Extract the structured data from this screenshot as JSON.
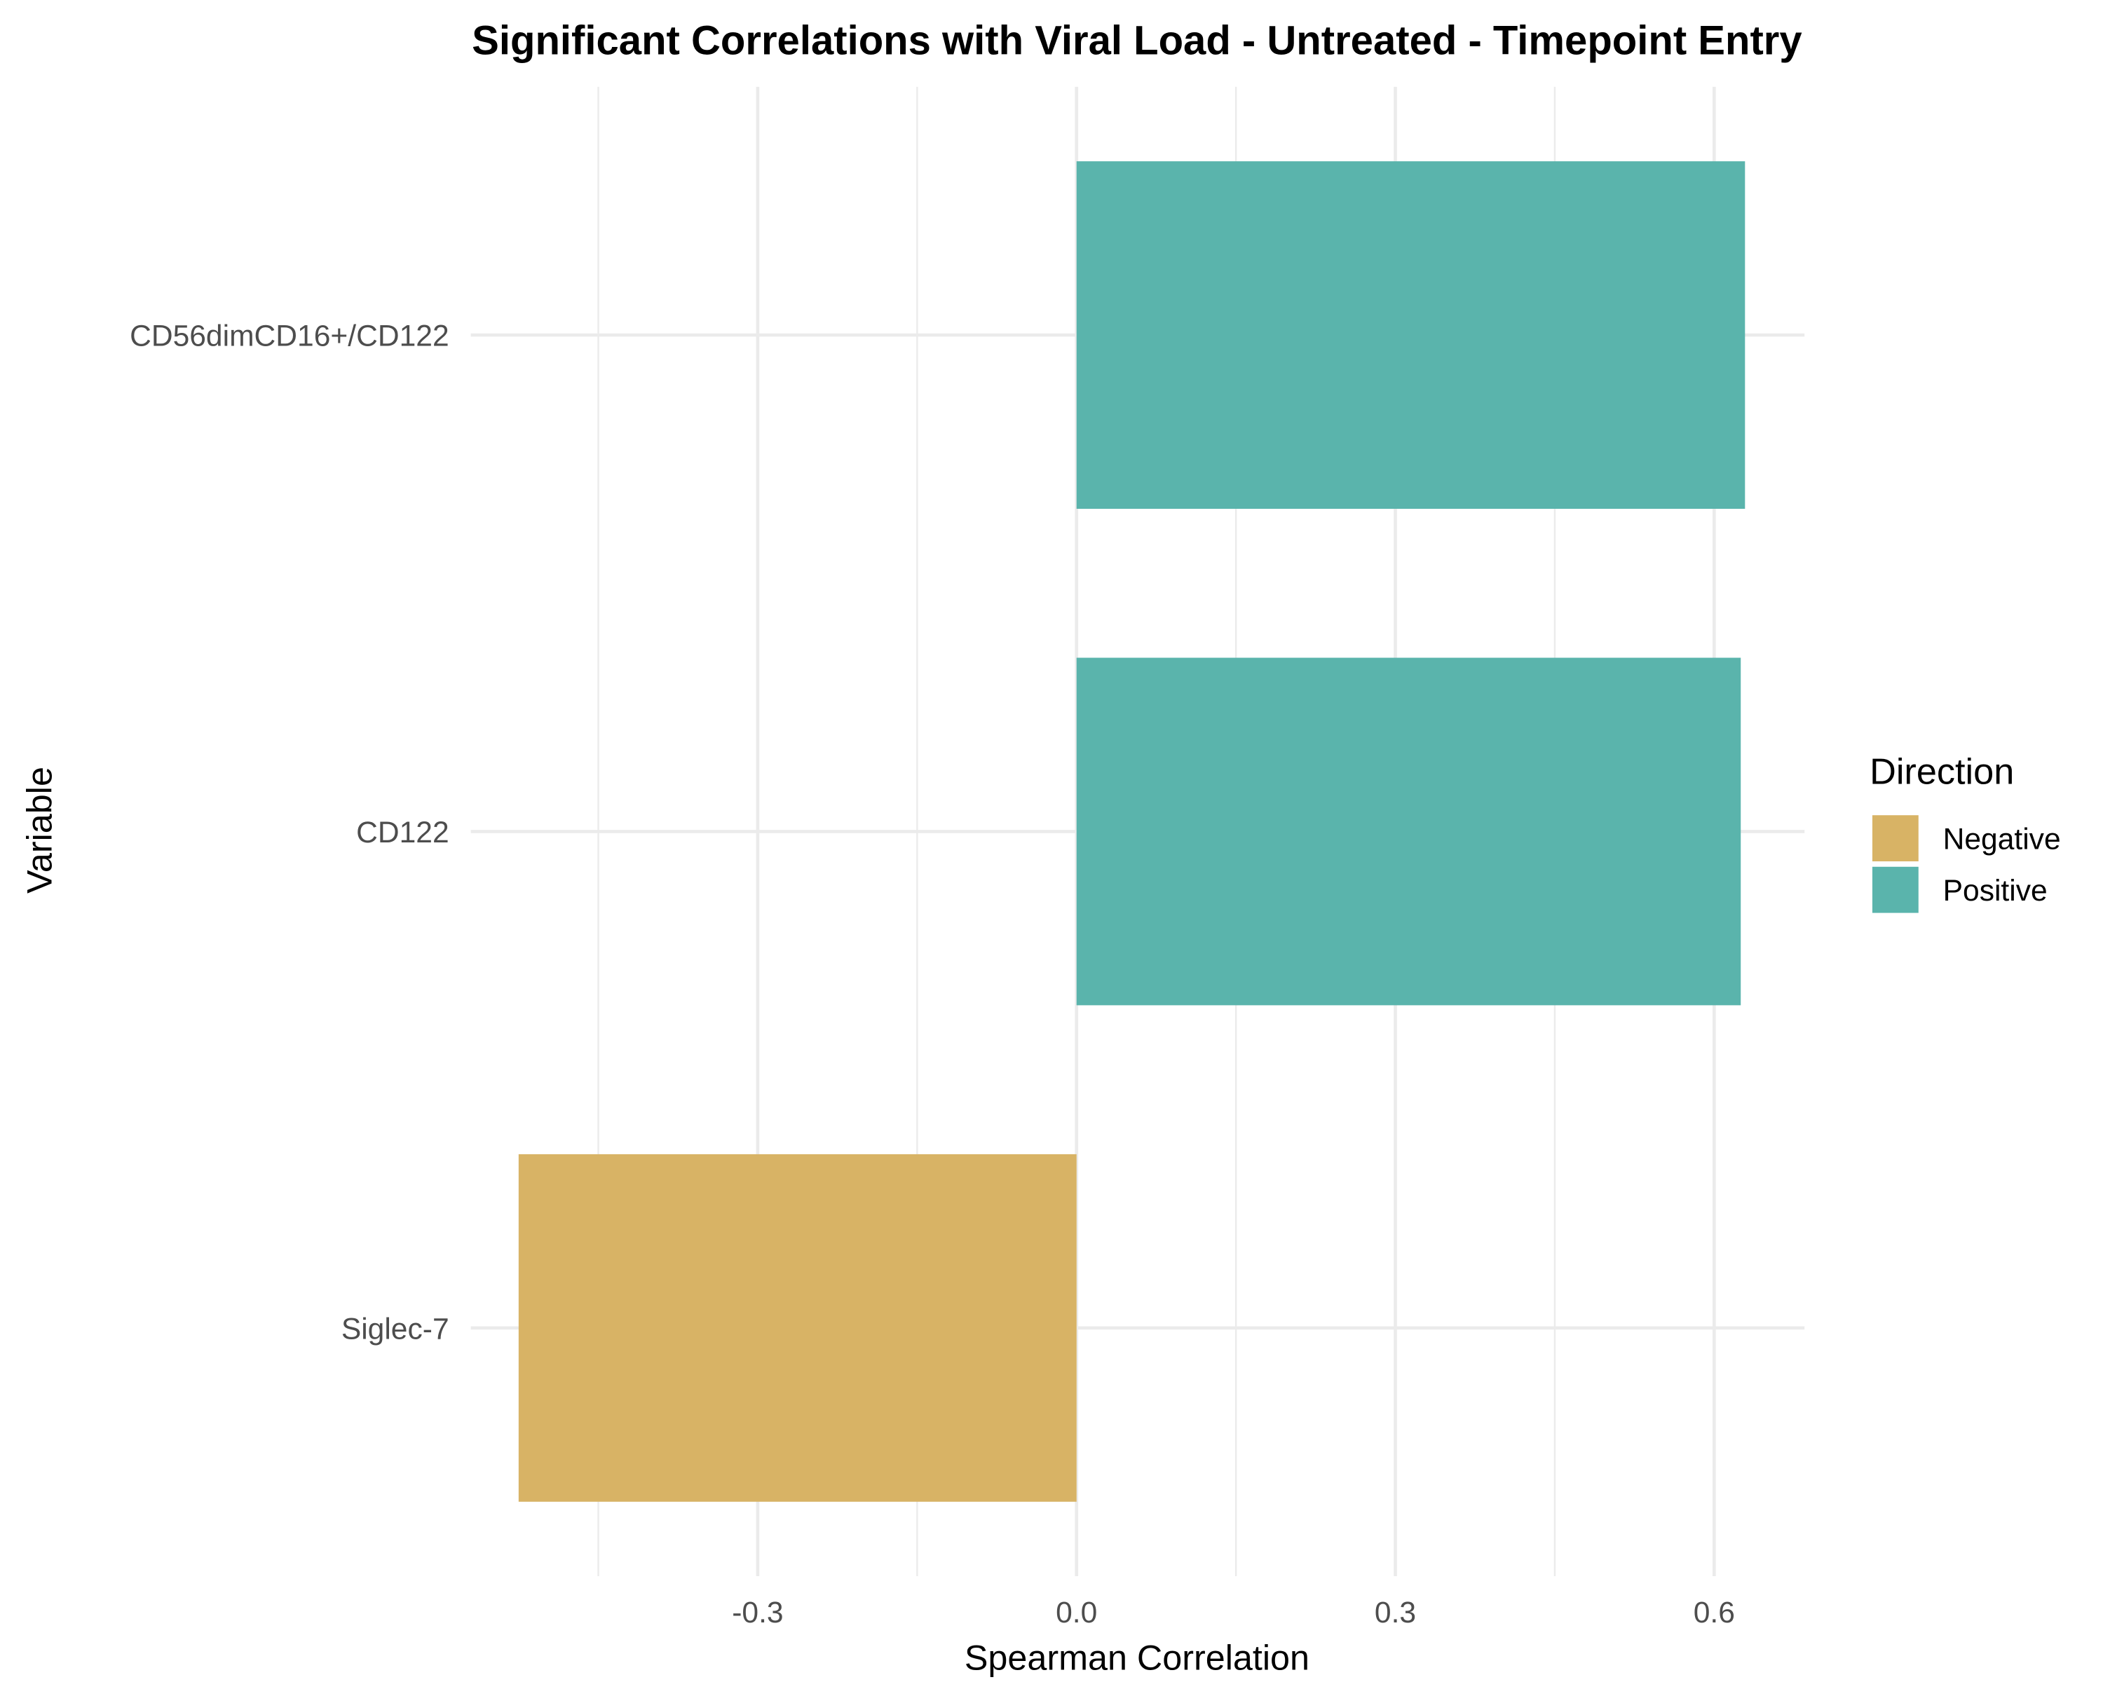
{
  "chart_data": {
    "type": "bar",
    "orientation": "horizontal",
    "title": "Significant Correlations with Viral Load - Untreated - Timepoint Entry",
    "xlabel": "Spearman Correlation",
    "ylabel": "Variable",
    "xlim": [
      -0.57,
      0.685
    ],
    "xticks": [
      -0.3,
      0.0,
      0.3,
      0.6
    ],
    "xtick_labels": [
      "-0.3",
      "0.0",
      "0.3",
      "0.6"
    ],
    "minor_xticks": [
      -0.45,
      -0.15,
      0.15,
      0.45
    ],
    "grid": true,
    "categories": [
      "CD56dimCD16+/CD122",
      "CD122",
      "Siglec-7"
    ],
    "values": [
      0.629,
      0.625,
      -0.525
    ],
    "directions": [
      "Positive",
      "Positive",
      "Negative"
    ],
    "legend": {
      "title": "Direction",
      "position": "right",
      "entries": [
        {
          "label": "Negative",
          "color": "#D8B365"
        },
        {
          "label": "Positive",
          "color": "#5AB4AC"
        }
      ]
    },
    "colors": {
      "Negative": "#D8B365",
      "Positive": "#5AB4AC",
      "grid": "#EBEBEB"
    }
  }
}
